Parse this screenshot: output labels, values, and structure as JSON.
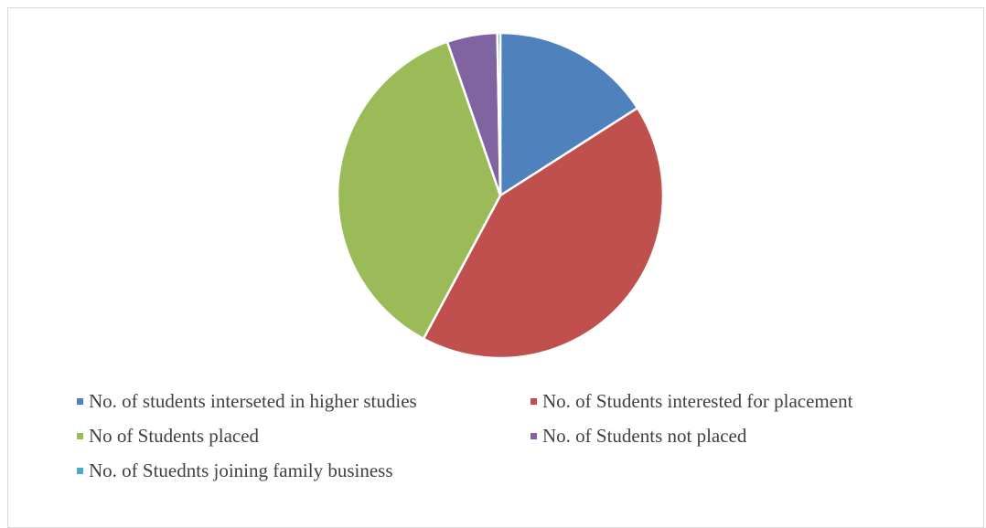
{
  "chart_data": {
    "type": "pie",
    "title": "",
    "start_angle_deg": 0,
    "direction": "clockwise",
    "slices": [
      {
        "label": "No. of students interseted in higher studies",
        "value": 16,
        "color": "#4f81bd"
      },
      {
        "label": "No. of Students interested for placement",
        "value": 42,
        "color": "#c0504d"
      },
      {
        "label": "No of Students placed",
        "value": 37,
        "color": "#9bbb59"
      },
      {
        "label": "No. of Students not placed",
        "value": 5,
        "color": "#8064a2"
      },
      {
        "label": "No. of Stuednts joining family business",
        "value": 0.3,
        "color": "#4bacc6"
      }
    ],
    "legend_position": "bottom",
    "slice_border_color": "#ffffff"
  }
}
